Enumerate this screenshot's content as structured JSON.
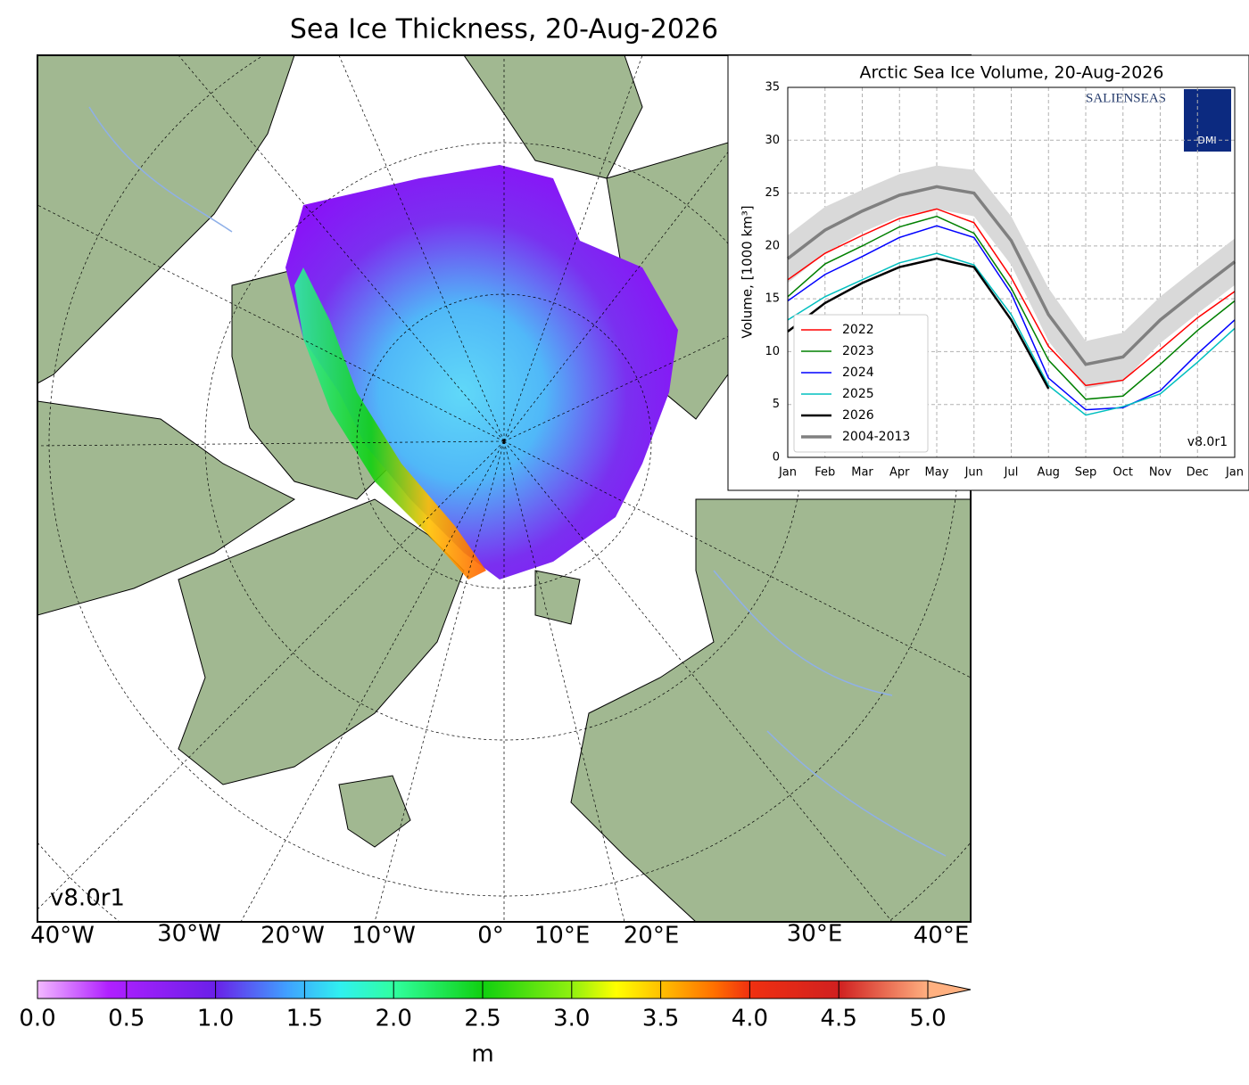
{
  "map": {
    "title": "Sea Ice Thickness, 20-Aug-2026",
    "version": "v8.0r1",
    "longitude_labels": [
      "40°W",
      "30°W",
      "20°W",
      "10°W",
      "0°",
      "10°E",
      "20°E",
      "30°E",
      "40°E"
    ],
    "colorbar": {
      "lim": [
        0,
        5
      ],
      "ticks": [
        {
          "value": 0,
          "label": "0.0"
        },
        0.5,
        {
          "value": 1,
          "label": "1.0"
        },
        1.5,
        {
          "value": 2,
          "label": "2.0"
        },
        2.5,
        {
          "value": 3,
          "label": "3.0"
        },
        3.5,
        {
          "value": 4,
          "label": "4.0"
        },
        4.5,
        {
          "value": 5,
          "label": "5.0"
        }
      ],
      "label": "m"
    }
  },
  "chart_data": {
    "type": "line",
    "title": "Arctic Sea Ice Volume, 20-Aug-2026",
    "y_label": "Volume, [1000 km³]",
    "version": "v8.0r1",
    "logos": [
      "SALIENSEAS",
      "DMI"
    ],
    "categories": [
      "Jan",
      "Feb",
      "Mar",
      "Apr",
      "May",
      "Jun",
      "Jul",
      "Aug",
      "Sep",
      "Oct",
      "Nov",
      "Dec",
      "Jan"
    ],
    "ylim": [
      0,
      35
    ],
    "yticks": [
      0,
      5,
      10,
      15,
      20,
      25,
      30,
      35
    ],
    "grid": true,
    "legend": "lower left",
    "series": [
      {
        "name": "2022",
        "color": "#ff0000",
        "width": 1.5,
        "values": [
          16.8,
          19.3,
          21.0,
          22.6,
          23.5,
          22.2,
          17.0,
          10.5,
          6.8,
          7.3,
          10.2,
          13.2,
          15.7
        ]
      },
      {
        "name": "2023",
        "color": "#008000",
        "width": 1.5,
        "values": [
          15.2,
          18.3,
          20.0,
          21.8,
          22.8,
          21.2,
          16.0,
          9.2,
          5.5,
          5.8,
          8.8,
          12.0,
          14.8
        ]
      },
      {
        "name": "2024",
        "color": "#0000ff",
        "width": 1.5,
        "values": [
          14.8,
          17.3,
          19.0,
          20.8,
          21.9,
          20.8,
          15.5,
          7.5,
          4.5,
          4.7,
          6.3,
          9.8,
          13.0
        ]
      },
      {
        "name": "2025",
        "color": "#00bfbf",
        "width": 1.5,
        "values": [
          13.0,
          15.2,
          16.8,
          18.4,
          19.3,
          18.2,
          13.5,
          6.8,
          4.0,
          4.8,
          6.0,
          9.0,
          12.2
        ]
      },
      {
        "name": "2026",
        "color": "#000000",
        "width": 2.5,
        "values": [
          11.9,
          14.6,
          16.5,
          18.0,
          18.8,
          18.0,
          13.0,
          6.5,
          null,
          null,
          null,
          null,
          null
        ]
      },
      {
        "name": "2004-2013",
        "color": "#808080",
        "width": 3.5,
        "values": [
          18.8,
          21.5,
          23.3,
          24.8,
          25.6,
          25.0,
          20.5,
          13.5,
          8.8,
          9.5,
          13.0,
          15.8,
          18.5
        ],
        "band_lower": [
          16.5,
          19.3,
          21.3,
          22.8,
          23.5,
          22.8,
          18.2,
          11.0,
          6.5,
          7.2,
          10.8,
          13.6,
          16.3
        ],
        "band_upper": [
          21.0,
          23.7,
          25.3,
          26.8,
          27.6,
          27.2,
          22.8,
          16.0,
          11.0,
          11.8,
          15.2,
          18.0,
          20.7
        ]
      }
    ]
  }
}
